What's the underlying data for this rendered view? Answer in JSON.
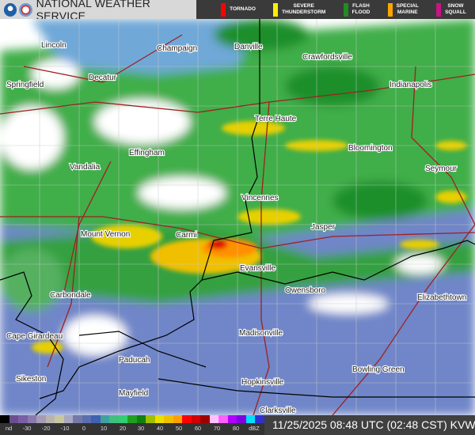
{
  "header": {
    "title": "NATIONAL WEATHER SERVICE",
    "logos": [
      "NOAA",
      "NWS"
    ],
    "warnings": [
      {
        "label": "TORNADO",
        "color": "#ff0000"
      },
      {
        "label": "SEVERE\nTHUNDERSTORM",
        "color": "#ffee00"
      },
      {
        "label": "FLASH\nFLOOD",
        "color": "#228b22"
      },
      {
        "label": "SPECIAL\nMARINE",
        "color": "#ffa500"
      },
      {
        "label": "SNOW\nSQUALL",
        "color": "#c71585"
      }
    ]
  },
  "map": {
    "cities": [
      {
        "name": "Lincoln"
      },
      {
        "name": "Champaign"
      },
      {
        "name": "Danville"
      },
      {
        "name": "Crawfordsville"
      },
      {
        "name": "Springfield"
      },
      {
        "name": "Decatur"
      },
      {
        "name": "Indianapolis"
      },
      {
        "name": "Terre Haute"
      },
      {
        "name": "Effingham"
      },
      {
        "name": "Bloomington"
      },
      {
        "name": "Vandalia"
      },
      {
        "name": "Seymour"
      },
      {
        "name": "Vincennes"
      },
      {
        "name": "Jasper"
      },
      {
        "name": "Mount Vernon"
      },
      {
        "name": "Carmi"
      },
      {
        "name": "Evansville"
      },
      {
        "name": "Owensboro"
      },
      {
        "name": "Carbondale"
      },
      {
        "name": "Elizabethtown"
      },
      {
        "name": "Cape Girardeau"
      },
      {
        "name": "Madisonville"
      },
      {
        "name": "Paducah"
      },
      {
        "name": "Bowling Green"
      },
      {
        "name": "Sikeston"
      },
      {
        "name": "Hopkinsville"
      },
      {
        "name": "Mayfield"
      },
      {
        "name": "Clarksville"
      }
    ]
  },
  "legend": {
    "colors": [
      "#000000",
      "#6a4f8f",
      "#7a5fa5",
      "#8a7ab0",
      "#a59cb8",
      "#b8b5b0",
      "#c8c8a0",
      "#a8a8c0",
      "#7878a8",
      "#5a6fb0",
      "#4060b0",
      "#40a0a0",
      "#40c080",
      "#30d070",
      "#20a020",
      "#108010",
      "#a0c000",
      "#e8e000",
      "#f0c000",
      "#ffa000",
      "#ff0000",
      "#d00000",
      "#a00000",
      "#ffc0ff",
      "#ff60ff",
      "#b000ff",
      "#8000e0",
      "#00e0ff",
      "#3030d0"
    ],
    "ticks": [
      "nd",
      "-30",
      "-20",
      "-10",
      "0",
      "10",
      "20",
      "30",
      "40",
      "50",
      "60",
      "70",
      "80",
      "dBZ"
    ]
  },
  "footer": {
    "timestamp": "11/25/2025 08:48 UTC (02:48 CST) KVWX"
  }
}
